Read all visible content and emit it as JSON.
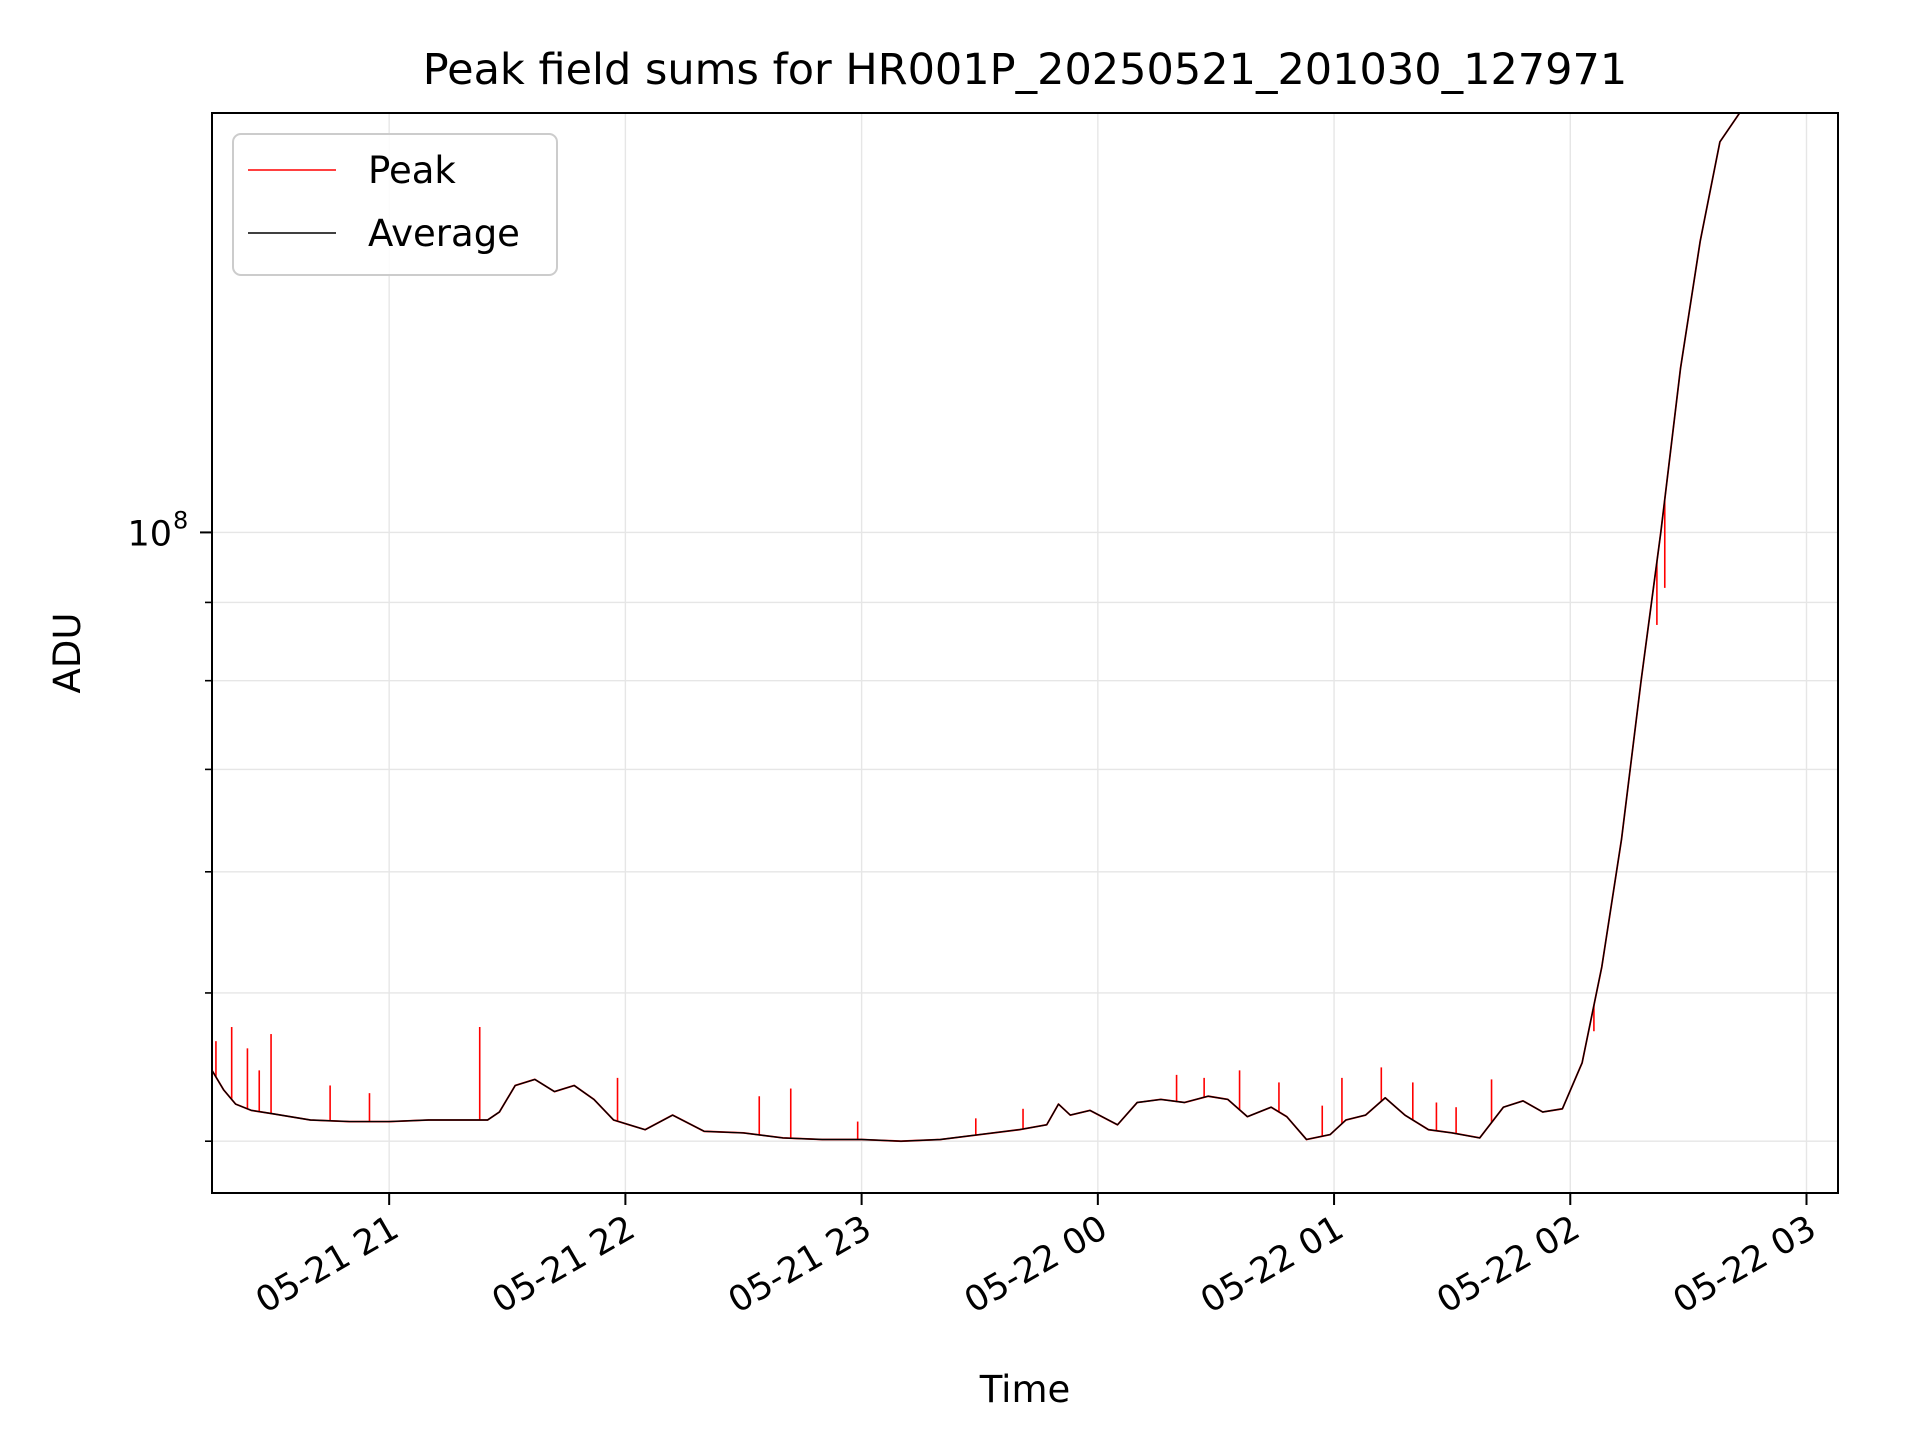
{
  "chart_data": {
    "type": "line",
    "title": "Peak field sums for HR001P_20250521_201030_127971",
    "xlabel": "Time",
    "ylabel": "ADU",
    "y_scale": "log",
    "ylim": [
      37000000,
      188000000
    ],
    "xlim": [
      "2025-05-21 20:15",
      "2025-05-22 03:08"
    ],
    "grid": true,
    "legend_position": "upper-left",
    "x_ticks": [
      {
        "value": "2025-05-21 21:00",
        "label": "05-21 21"
      },
      {
        "value": "2025-05-21 22:00",
        "label": "05-21 22"
      },
      {
        "value": "2025-05-21 23:00",
        "label": "05-21 23"
      },
      {
        "value": "2025-05-22 00:00",
        "label": "05-22 00"
      },
      {
        "value": "2025-05-22 01:00",
        "label": "05-22 01"
      },
      {
        "value": "2025-05-22 02:00",
        "label": "05-22 02"
      },
      {
        "value": "2025-05-22 03:00",
        "label": "05-22 03"
      }
    ],
    "y_major_ticks": [
      {
        "value": 100000000,
        "base": "10",
        "exponent": "8"
      }
    ],
    "y_minor_ticks": [
      40000000,
      50000000,
      60000000,
      70000000,
      80000000,
      90000000,
      200000000
    ],
    "series": [
      {
        "name": "Peak",
        "color": "#ff0000",
        "x": [
          "2025-05-21 20:15",
          "2025-05-21 20:18",
          "2025-05-21 20:21",
          "2025-05-21 20:25",
          "2025-05-21 20:30",
          "2025-05-21 20:40",
          "2025-05-21 20:50",
          "2025-05-21 21:00",
          "2025-05-21 21:10",
          "2025-05-21 21:20",
          "2025-05-21 21:25",
          "2025-05-21 21:28",
          "2025-05-21 21:32",
          "2025-05-21 21:37",
          "2025-05-21 21:42",
          "2025-05-21 21:47",
          "2025-05-21 21:52",
          "2025-05-21 21:57",
          "2025-05-21 22:05",
          "2025-05-21 22:12",
          "2025-05-21 22:20",
          "2025-05-21 22:30",
          "2025-05-21 22:40",
          "2025-05-21 22:50",
          "2025-05-21 23:00",
          "2025-05-21 23:10",
          "2025-05-21 23:20",
          "2025-05-21 23:30",
          "2025-05-21 23:40",
          "2025-05-21 23:47",
          "2025-05-21 23:50",
          "2025-05-21 23:53",
          "2025-05-21 23:58",
          "2025-05-22 00:05",
          "2025-05-22 00:10",
          "2025-05-22 00:16",
          "2025-05-22 00:22",
          "2025-05-22 00:28",
          "2025-05-22 00:33",
          "2025-05-22 00:38",
          "2025-05-22 00:44",
          "2025-05-22 00:48",
          "2025-05-22 00:53",
          "2025-05-22 00:59",
          "2025-05-22 01:03",
          "2025-05-22 01:08",
          "2025-05-22 01:13",
          "2025-05-22 01:18",
          "2025-05-22 01:24",
          "2025-05-22 01:30",
          "2025-05-22 01:37",
          "2025-05-22 01:43",
          "2025-05-22 01:48",
          "2025-05-22 01:53",
          "2025-05-22 01:58",
          "2025-05-22 02:03",
          "2025-05-22 02:08",
          "2025-05-22 02:13",
          "2025-05-22 02:18",
          "2025-05-22 02:23",
          "2025-05-22 02:28",
          "2025-05-22 02:33",
          "2025-05-22 02:38",
          "2025-05-22 02:43",
          "2025-05-22 02:48"
        ],
        "y": [
          44500000,
          43200000,
          42300000,
          41900000,
          41700000,
          41300000,
          41200000,
          41200000,
          41300000,
          41300000,
          41300000,
          41800000,
          43500000,
          43900000,
          43100000,
          43500000,
          42600000,
          41300000,
          40700000,
          41600000,
          40600000,
          40500000,
          40200000,
          40100000,
          40100000,
          40000000,
          40100000,
          40400000,
          40700000,
          41000000,
          42300000,
          41600000,
          41900000,
          41000000,
          42400000,
          42600000,
          42400000,
          42800000,
          42600000,
          41500000,
          42100000,
          41500000,
          40100000,
          40400000,
          41300000,
          41600000,
          42700000,
          41600000,
          40700000,
          40500000,
          40200000,
          42100000,
          42500000,
          41800000,
          42000000,
          45000000,
          52000000,
          63000000,
          80000000,
          100000000,
          128000000,
          155000000,
          180000000,
          188000000,
          188000000
        ],
        "spikes": [
          {
            "x": "2025-05-21 20:16",
            "y": 46500000
          },
          {
            "x": "2025-05-21 20:20",
            "y": 47500000
          },
          {
            "x": "2025-05-21 20:24",
            "y": 46000000
          },
          {
            "x": "2025-05-21 20:27",
            "y": 44500000
          },
          {
            "x": "2025-05-21 20:30",
            "y": 47000000
          },
          {
            "x": "2025-05-21 20:45",
            "y": 43500000
          },
          {
            "x": "2025-05-21 20:55",
            "y": 43000000
          },
          {
            "x": "2025-05-21 21:23",
            "y": 47500000
          },
          {
            "x": "2025-05-21 21:58",
            "y": 44000000
          },
          {
            "x": "2025-05-21 22:34",
            "y": 42800000
          },
          {
            "x": "2025-05-21 22:42",
            "y": 43300000
          },
          {
            "x": "2025-05-21 22:59",
            "y": 41200000
          },
          {
            "x": "2025-05-21 23:29",
            "y": 41400000
          },
          {
            "x": "2025-05-21 23:41",
            "y": 42000000
          },
          {
            "x": "2025-05-22 00:20",
            "y": 44200000
          },
          {
            "x": "2025-05-22 00:27",
            "y": 44000000
          },
          {
            "x": "2025-05-22 00:36",
            "y": 44500000
          },
          {
            "x": "2025-05-22 00:46",
            "y": 43700000
          },
          {
            "x": "2025-05-22 00:57",
            "y": 42200000
          },
          {
            "x": "2025-05-22 01:02",
            "y": 44000000
          },
          {
            "x": "2025-05-22 01:12",
            "y": 44700000
          },
          {
            "x": "2025-05-22 01:20",
            "y": 43700000
          },
          {
            "x": "2025-05-22 01:26",
            "y": 42400000
          },
          {
            "x": "2025-05-22 01:31",
            "y": 42100000
          },
          {
            "x": "2025-05-22 01:40",
            "y": 43900000
          },
          {
            "x": "2025-05-22 02:06",
            "y": 47200000
          },
          {
            "x": "2025-05-22 02:22",
            "y": 87000000
          },
          {
            "x": "2025-05-22 02:24",
            "y": 92000000
          }
        ]
      },
      {
        "name": "Average",
        "color": "#000000",
        "x": [
          "2025-05-21 20:15",
          "2025-05-21 20:18",
          "2025-05-21 20:21",
          "2025-05-21 20:25",
          "2025-05-21 20:30",
          "2025-05-21 20:40",
          "2025-05-21 20:50",
          "2025-05-21 21:00",
          "2025-05-21 21:10",
          "2025-05-21 21:20",
          "2025-05-21 21:25",
          "2025-05-21 21:28",
          "2025-05-21 21:32",
          "2025-05-21 21:37",
          "2025-05-21 21:42",
          "2025-05-21 21:47",
          "2025-05-21 21:52",
          "2025-05-21 21:57",
          "2025-05-21 22:05",
          "2025-05-21 22:12",
          "2025-05-21 22:20",
          "2025-05-21 22:30",
          "2025-05-21 22:40",
          "2025-05-21 22:50",
          "2025-05-21 23:00",
          "2025-05-21 23:10",
          "2025-05-21 23:20",
          "2025-05-21 23:30",
          "2025-05-21 23:40",
          "2025-05-21 23:47",
          "2025-05-21 23:50",
          "2025-05-21 23:53",
          "2025-05-21 23:58",
          "2025-05-22 00:05",
          "2025-05-22 00:10",
          "2025-05-22 00:16",
          "2025-05-22 00:22",
          "2025-05-22 00:28",
          "2025-05-22 00:33",
          "2025-05-22 00:38",
          "2025-05-22 00:44",
          "2025-05-22 00:48",
          "2025-05-22 00:53",
          "2025-05-22 00:59",
          "2025-05-22 01:03",
          "2025-05-22 01:08",
          "2025-05-22 01:13",
          "2025-05-22 01:18",
          "2025-05-22 01:24",
          "2025-05-22 01:30",
          "2025-05-22 01:37",
          "2025-05-22 01:43",
          "2025-05-22 01:48",
          "2025-05-22 01:53",
          "2025-05-22 01:58",
          "2025-05-22 02:03",
          "2025-05-22 02:08",
          "2025-05-22 02:13",
          "2025-05-22 02:18",
          "2025-05-22 02:23",
          "2025-05-22 02:28",
          "2025-05-22 02:33",
          "2025-05-22 02:38",
          "2025-05-22 02:43",
          "2025-05-22 02:48"
        ],
        "y": [
          44500000,
          43200000,
          42300000,
          41900000,
          41700000,
          41300000,
          41200000,
          41200000,
          41300000,
          41300000,
          41300000,
          41800000,
          43500000,
          43900000,
          43100000,
          43500000,
          42600000,
          41300000,
          40700000,
          41600000,
          40600000,
          40500000,
          40200000,
          40100000,
          40100000,
          40000000,
          40100000,
          40400000,
          40700000,
          41000000,
          42300000,
          41600000,
          41900000,
          41000000,
          42400000,
          42600000,
          42400000,
          42800000,
          42600000,
          41500000,
          42100000,
          41500000,
          40100000,
          40400000,
          41300000,
          41600000,
          42700000,
          41600000,
          40700000,
          40500000,
          40200000,
          42100000,
          42500000,
          41800000,
          42000000,
          45000000,
          52000000,
          63000000,
          80000000,
          100000000,
          128000000,
          155000000,
          180000000,
          188000000,
          188000000
        ]
      }
    ]
  }
}
